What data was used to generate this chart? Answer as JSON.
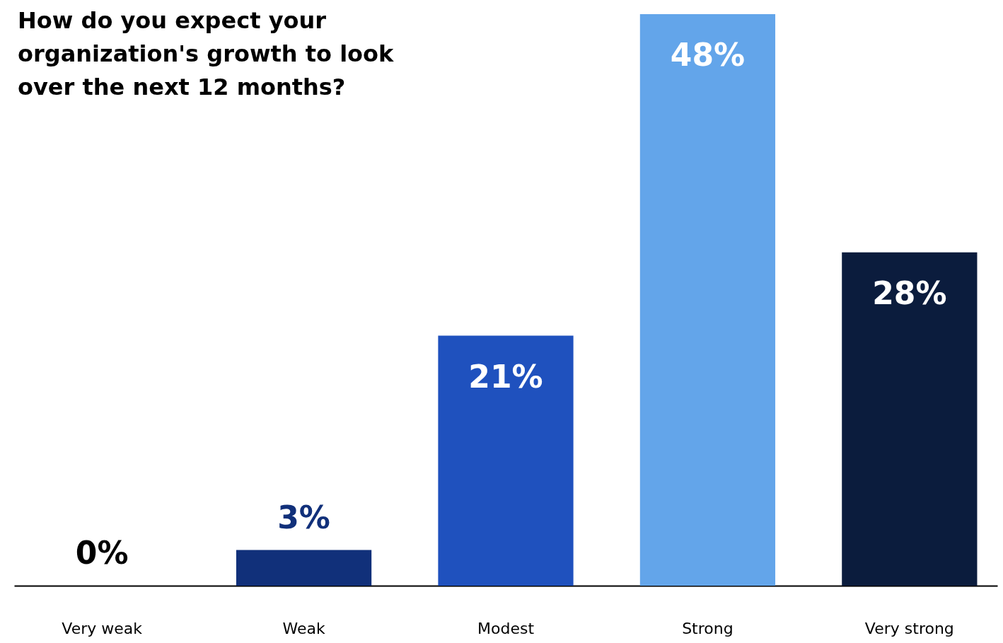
{
  "chart_data": {
    "type": "bar",
    "title": "How do you expect your organization's growth to look over the next 12 months?",
    "categories": [
      "Very weak",
      "Weak",
      "Modest",
      "Strong",
      "Very strong"
    ],
    "values": [
      0,
      3,
      21,
      48,
      28
    ],
    "colors": [
      "#000000",
      "#11307a",
      "#1f51be",
      "#63a5ea",
      "#0b1c3d"
    ],
    "value_labels": [
      "0%",
      "3%",
      "21%",
      "48%",
      "28%"
    ]
  }
}
